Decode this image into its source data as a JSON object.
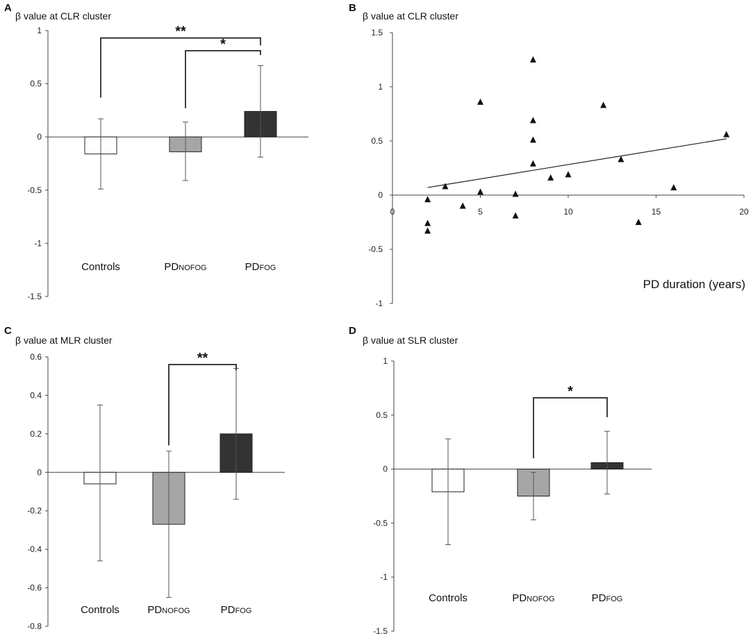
{
  "chart_data": [
    {
      "panel": "A",
      "type": "bar",
      "title": "β value at CLR cluster",
      "ylim": [
        -1.5,
        1
      ],
      "yticks": [
        1,
        0.5,
        0,
        -0.5,
        -1,
        -1.5
      ],
      "ytick_labels": [
        "1",
        "0.5",
        "0",
        "-0.5",
        "-1",
        "-1.5"
      ],
      "categories": [
        {
          "main": "Controls",
          "sub": ""
        },
        {
          "main": "PD",
          "sub": "NOFOG"
        },
        {
          "main": "PD",
          "sub": "FOG"
        }
      ],
      "values": [
        -0.16,
        -0.14,
        0.24
      ],
      "error_low": [
        -0.49,
        -0.41,
        -0.19
      ],
      "error_high": [
        0.17,
        0.14,
        0.67
      ],
      "colors": [
        "#ffffff",
        "#a6a6a6",
        "#333333"
      ],
      "significance": [
        {
          "from": 0,
          "to": 2,
          "label": "**",
          "y": 0.93,
          "left_bottom": 0.37,
          "right_bottom": 0.86
        },
        {
          "from": 1,
          "to": 2,
          "label": "*",
          "y": 0.81,
          "left_bottom": 0.27,
          "right_bottom": 0.77
        }
      ]
    },
    {
      "panel": "B",
      "type": "scatter",
      "title": "β value at CLR cluster",
      "xlabel": "PD duration (years)",
      "xlim": [
        0,
        20
      ],
      "ylim": [
        -1,
        1.5
      ],
      "xticks": [
        0,
        5,
        10,
        15,
        20
      ],
      "xtick_labels": [
        "0",
        "5",
        "10",
        "15",
        "20"
      ],
      "yticks": [
        1.5,
        1,
        0.5,
        0,
        -0.5,
        -1
      ],
      "ytick_labels": [
        "1.5",
        "1",
        "0.5",
        "0",
        "-0.5",
        "-1"
      ],
      "points": [
        [
          2,
          -0.04
        ],
        [
          2,
          -0.26
        ],
        [
          2,
          -0.33
        ],
        [
          3,
          0.08
        ],
        [
          4,
          -0.1
        ],
        [
          5,
          0.86
        ],
        [
          5,
          0.03
        ],
        [
          7,
          0.01
        ],
        [
          7,
          -0.19
        ],
        [
          8,
          1.25
        ],
        [
          8,
          0.69
        ],
        [
          8,
          0.51
        ],
        [
          8,
          0.29
        ],
        [
          9,
          0.16
        ],
        [
          10,
          0.19
        ],
        [
          12,
          0.83
        ],
        [
          13,
          0.33
        ],
        [
          14,
          -0.25
        ],
        [
          16,
          0.07
        ],
        [
          19,
          0.56
        ]
      ],
      "trendline": {
        "x": [
          2,
          19
        ],
        "y": [
          0.07,
          0.52
        ]
      }
    },
    {
      "panel": "C",
      "type": "bar",
      "title": "β value at MLR cluster",
      "ylim": [
        -0.8,
        0.6
      ],
      "yticks": [
        0.6,
        0.4,
        0.2,
        0,
        -0.2,
        -0.4,
        -0.6,
        -0.8
      ],
      "ytick_labels": [
        "0.6",
        "0.4",
        "0.2",
        "0",
        "-0.2",
        "-0.4",
        "-0.6",
        "-0.8"
      ],
      "categories": [
        {
          "main": "Controls",
          "sub": ""
        },
        {
          "main": "PD",
          "sub": "NOFOG"
        },
        {
          "main": "PD",
          "sub": "FOG"
        }
      ],
      "values": [
        -0.06,
        -0.27,
        0.2
      ],
      "error_low": [
        -0.46,
        -0.65,
        -0.14
      ],
      "error_high": [
        0.35,
        0.11,
        0.54
      ],
      "colors": [
        "#ffffff",
        "#a6a6a6",
        "#333333"
      ],
      "significance": [
        {
          "from": 1,
          "to": 2,
          "label": "**",
          "y": 0.56,
          "left_bottom": 0.14,
          "right_bottom": 0.53
        }
      ]
    },
    {
      "panel": "D",
      "type": "bar",
      "title": "β value at SLR cluster",
      "ylim": [
        -1.5,
        1
      ],
      "yticks": [
        1,
        0.5,
        0,
        -0.5,
        -1,
        -1.5
      ],
      "ytick_labels": [
        "1",
        "0.5",
        "0",
        "-0.5",
        "-1",
        "-1.5"
      ],
      "categories": [
        {
          "main": "Controls",
          "sub": ""
        },
        {
          "main": "PD",
          "sub": "NOFOG"
        },
        {
          "main": "PD",
          "sub": "FOG"
        }
      ],
      "values": [
        -0.21,
        -0.25,
        0.06
      ],
      "error_low": [
        -0.7,
        -0.47,
        -0.23
      ],
      "error_high": [
        0.28,
        -0.03,
        0.35
      ],
      "colors": [
        "#ffffff",
        "#a6a6a6",
        "#333333"
      ],
      "significance": [
        {
          "from": 1,
          "to": 2,
          "label": "*",
          "y": 0.66,
          "left_bottom": 0.1,
          "right_bottom": 0.48
        }
      ]
    }
  ]
}
